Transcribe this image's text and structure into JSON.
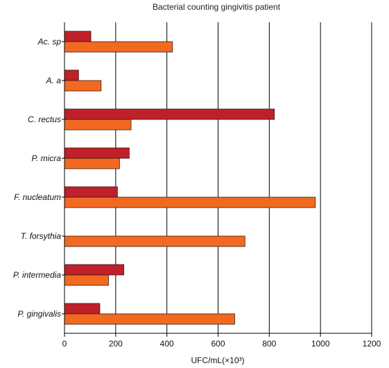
{
  "chart_data": {
    "type": "bar",
    "orientation": "horizontal",
    "title": "Bacterial counting gingivitis patient",
    "xlabel": "UFC/mL(×10³)",
    "ylabel": "",
    "xlim": [
      0,
      1200
    ],
    "xticks": [
      "0",
      "200",
      "400",
      "600",
      "800",
      "1000",
      "1200"
    ],
    "grid": "vertical",
    "legend": "none",
    "categories": [
      "Ac. sp",
      "A. a",
      "C. rectus",
      "P. micra",
      "F. nucleatum",
      "T. forsythia",
      "P. intermedia",
      "P. gingivalis"
    ],
    "series": [
      {
        "color": "#c0202a",
        "values": [
          103,
          55,
          820,
          253,
          207,
          0,
          232,
          138
        ]
      },
      {
        "color": "#f26a21",
        "values": [
          422,
          143,
          260,
          215,
          980,
          705,
          172,
          665
        ]
      }
    ]
  }
}
